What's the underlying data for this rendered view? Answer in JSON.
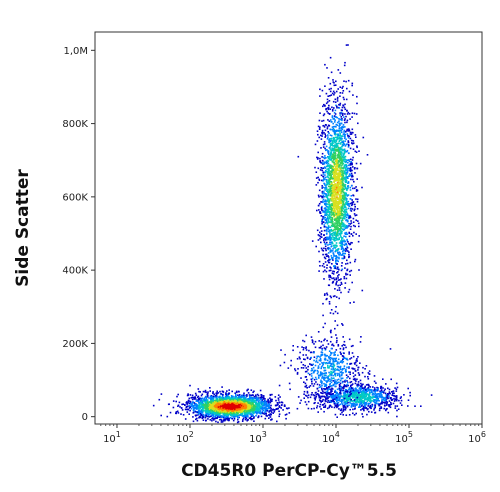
{
  "chart_data": {
    "type": "scatter",
    "subtype": "flow-cytometry-density-dot-plot",
    "title": "",
    "xlabel": "CD45R0 PerCP-Cy™5.5",
    "ylabel": "Side Scatter",
    "x_scale": "log",
    "xlim": [
      5,
      1000000
    ],
    "ylim": [
      -20000,
      1050000
    ],
    "x_ticks": [
      {
        "value": 10,
        "mantissa": "10",
        "exp": "1"
      },
      {
        "value": 100,
        "mantissa": "10",
        "exp": "2"
      },
      {
        "value": 1000,
        "mantissa": "10",
        "exp": "3"
      },
      {
        "value": 10000,
        "mantissa": "10",
        "exp": "4"
      },
      {
        "value": 100000,
        "mantissa": "10",
        "exp": "5"
      },
      {
        "value": 1000000,
        "mantissa": "10",
        "exp": "6"
      }
    ],
    "y_ticks": [
      {
        "value": 0,
        "label": "0"
      },
      {
        "value": 200000,
        "label": "200K"
      },
      {
        "value": 400000,
        "label": "400K"
      },
      {
        "value": 600000,
        "label": "600K"
      },
      {
        "value": 800000,
        "label": "800K"
      },
      {
        "value": 1000000,
        "label": "1,0M"
      }
    ],
    "grid": false,
    "legend": "none",
    "color_map": [
      "#0000c8",
      "#0080ff",
      "#00c8c8",
      "#30d060",
      "#d8e020",
      "#ff8000",
      "#e00000"
    ],
    "populations": [
      {
        "cx": 350,
        "cy": 30000,
        "sx_log": 0.28,
        "sy": 16000,
        "n": 2600,
        "peak_density": 1.0
      },
      {
        "cx": 10000,
        "cy": 620000,
        "sx_log": 0.11,
        "sy": 120000,
        "n": 2400,
        "peak_density": 0.7
      },
      {
        "cx": 20000,
        "cy": 55000,
        "sx_log": 0.28,
        "sy": 18000,
        "n": 900,
        "peak_density": 0.4
      },
      {
        "cx": 8000,
        "cy": 130000,
        "sx_log": 0.22,
        "sy": 45000,
        "n": 600,
        "peak_density": 0.3
      }
    ]
  }
}
